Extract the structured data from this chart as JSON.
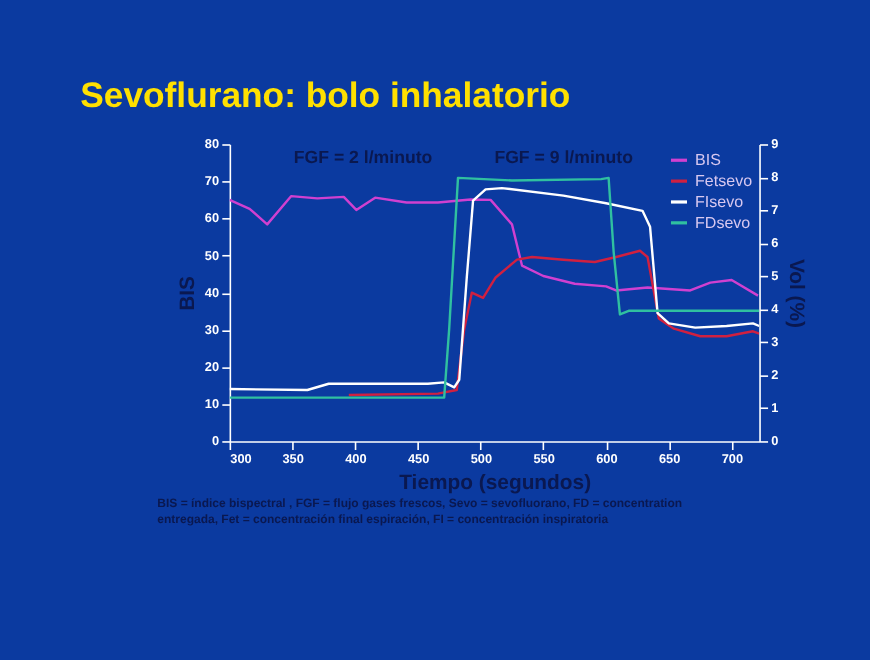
{
  "chart_data": {
    "type": "line",
    "title": "Sevoflurano: bolo inhalatorio",
    "xlabel": "Tiempo (segundos)",
    "ylabel": "BIS",
    "y2label": "Vol (%)",
    "annotations": [
      "FGF = 2 l/minuto",
      "FGF = 9 l/minuto",
      "BIS = índice bispectral , FGF = flujo gases frescos, Sevo = sevofluorano, FD = concentration entregada, Fet = concentración final espiración, FI = concentración inspiratoria"
    ],
    "xlim": [
      300,
      722
    ],
    "xticks": [
      300,
      350,
      400,
      450,
      500,
      550,
      600,
      650,
      700
    ],
    "ylim": [
      0,
      80
    ],
    "yticks": [
      0,
      10,
      20,
      30,
      40,
      50,
      60,
      70,
      80
    ],
    "y2lim": [
      0,
      9
    ],
    "y2ticks": [
      0,
      1,
      2,
      3,
      4,
      5,
      6,
      7,
      8,
      9
    ],
    "grid": false,
    "legend": "top right",
    "marker": "none",
    "line_style": "solid",
    "series": [
      {
        "name": "BIS",
        "color": "#d040d0",
        "x": [
          300,
          316,
          330,
          349,
          370,
          391,
          401,
          416,
          441,
          466,
          492,
          508,
          525,
          533,
          550,
          575,
          600,
          608,
          633,
          667,
          683,
          700,
          721
        ],
        "values": [
          65,
          62.6,
          58.4,
          66,
          65.4,
          65.8,
          62.3,
          65.6,
          64.3,
          64.3,
          65.1,
          65,
          58.4,
          47.3,
          44.5,
          42.4,
          41.7,
          40.6,
          41.4,
          40.6,
          42.7,
          43.4,
          39.2
        ]
      },
      {
        "name": "Fetsevo",
        "color": "#d02040",
        "axis": "y2",
        "x": [
          395,
          466,
          481,
          485,
          487,
          493,
          502,
          512,
          529,
          541,
          566,
          591,
          608,
          627,
          633,
          642,
          654,
          675,
          696,
          717,
          722
        ],
        "values": [
          1.4,
          1.44,
          1.55,
          2.8,
          3.4,
          4.5,
          4.34,
          4.96,
          5.5,
          5.58,
          5.5,
          5.43,
          5.58,
          5.77,
          5.58,
          3.72,
          3.41,
          3.18,
          3.18,
          3.33,
          3.26
        ]
      },
      {
        "name": "FIsevo",
        "color": "#ffffff",
        "axis": "y2",
        "x": [
          300,
          362,
          379,
          458,
          471,
          479,
          483,
          489,
          494,
          504,
          517,
          566,
          600,
          629,
          635,
          641,
          650,
          671,
          696,
          717,
          722
        ],
        "values": [
          1.58,
          1.55,
          1.74,
          1.74,
          1.78,
          1.63,
          1.86,
          4.96,
          7.29,
          7.63,
          7.67,
          7.44,
          7.21,
          6.98,
          6.5,
          3.88,
          3.57,
          3.44,
          3.49,
          3.57,
          3.49
        ]
      },
      {
        "name": "FDsevo",
        "color": "#30c0a0",
        "axis": "y2",
        "x": [
          300,
          471,
          475,
          482,
          525,
          596,
          602,
          606,
          611,
          618,
          722
        ],
        "values": [
          1.32,
          1.32,
          3.41,
          7.98,
          7.9,
          7.94,
          7.98,
          5.74,
          3.84,
          3.95,
          3.95
        ]
      }
    ]
  }
}
